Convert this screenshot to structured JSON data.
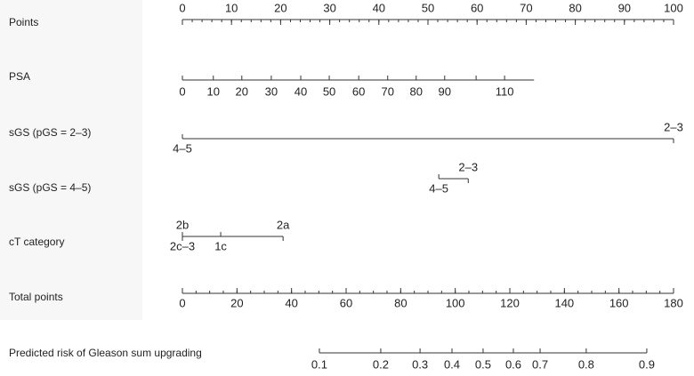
{
  "chart_data": {
    "type": "nomogram",
    "points_axis": {
      "label": "Points",
      "range": [
        0,
        100
      ],
      "ticks": [
        0,
        10,
        20,
        30,
        40,
        50,
        60,
        70,
        80,
        90,
        100
      ],
      "minor_step": 2
    },
    "rows": [
      {
        "label": "PSA",
        "points_range": [
          0,
          71.6
        ],
        "ticks": [
          {
            "value": 0,
            "points": 0
          },
          {
            "value": 10,
            "points": 6.3
          },
          {
            "value": 20,
            "points": 12.1
          },
          {
            "value": 30,
            "points": 18.1
          },
          {
            "value": 40,
            "points": 24.1
          },
          {
            "value": 50,
            "points": 29.9
          },
          {
            "value": 60,
            "points": 35.9
          },
          {
            "value": 70,
            "points": 41.8
          },
          {
            "value": 80,
            "points": 47.6
          },
          {
            "value": 90,
            "points": 53.4
          },
          {
            "value": 100,
            "points": 59.8,
            "label": null
          },
          {
            "value": 110,
            "points": 65.6
          }
        ]
      },
      {
        "label": "sGS (pGS = 2–3)",
        "ticks": [
          {
            "label": "4–5",
            "points": 0,
            "side": "below"
          },
          {
            "label": "2–3",
            "points": 100,
            "side": "above"
          }
        ]
      },
      {
        "label": "sGS (pGS = 4–5)",
        "ticks": [
          {
            "label": "4–5",
            "points": 52.2,
            "side": "below"
          },
          {
            "label": "2–3",
            "points": 58.2,
            "side": "above"
          }
        ]
      },
      {
        "label": "cT category",
        "ticks": [
          {
            "label": "2b",
            "points": 0,
            "side": "above"
          },
          {
            "label": "2c–3",
            "points": 0,
            "side": "below"
          },
          {
            "label": "1c",
            "points": 7.8,
            "side": "below"
          },
          {
            "label": "2a",
            "points": 20.5,
            "side": "above"
          }
        ]
      }
    ],
    "total_axis": {
      "label": "Total points",
      "range": [
        0,
        180
      ],
      "ticks": [
        0,
        20,
        40,
        60,
        80,
        100,
        120,
        140,
        160,
        180
      ],
      "minor_step": 5
    },
    "risk_axis": {
      "label": "Predicted risk of Gleason sum upgrading",
      "ticks": [
        {
          "value": 0.1,
          "total_points": 50.2
        },
        {
          "value": 0.2,
          "total_points": 72.7
        },
        {
          "value": 0.3,
          "total_points": 87.1
        },
        {
          "value": 0.4,
          "total_points": 98.8
        },
        {
          "value": 0.5,
          "total_points": 110.2
        },
        {
          "value": 0.6,
          "total_points": 121.3
        },
        {
          "value": 0.7,
          "total_points": 131.1
        },
        {
          "value": 0.8,
          "total_points": 148.0
        },
        {
          "value": 0.9,
          "total_points": 170.2
        }
      ]
    }
  }
}
